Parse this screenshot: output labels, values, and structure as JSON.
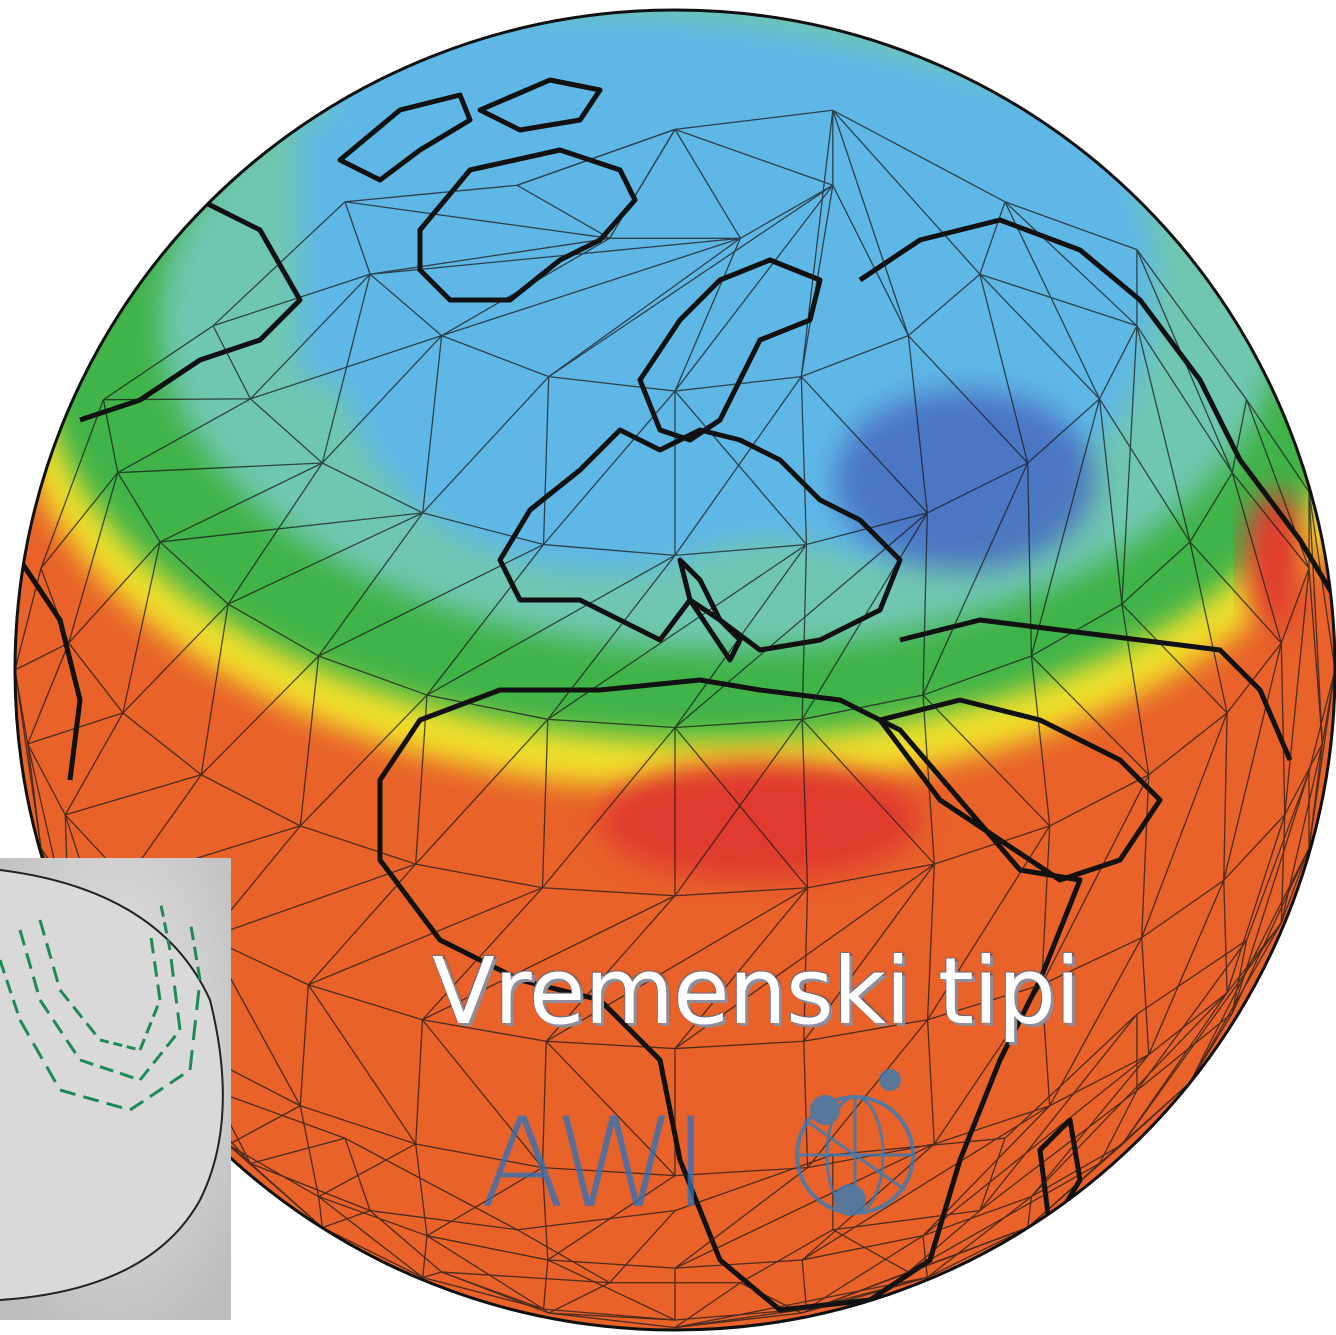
{
  "title": "Vremenski tipi",
  "logo": {
    "text": "AWI",
    "icon": "awi-logo-icon"
  },
  "colors": {
    "warm": "#e8622a",
    "hot": "#e03a2d",
    "yellow": "#f2e12a",
    "green": "#3fb34a",
    "teal": "#6fc7b0",
    "cold": "#5fb7e6",
    "coldest": "#4a6fc1",
    "title_fill": "#ffffff",
    "logo": "#2a7fc0"
  }
}
